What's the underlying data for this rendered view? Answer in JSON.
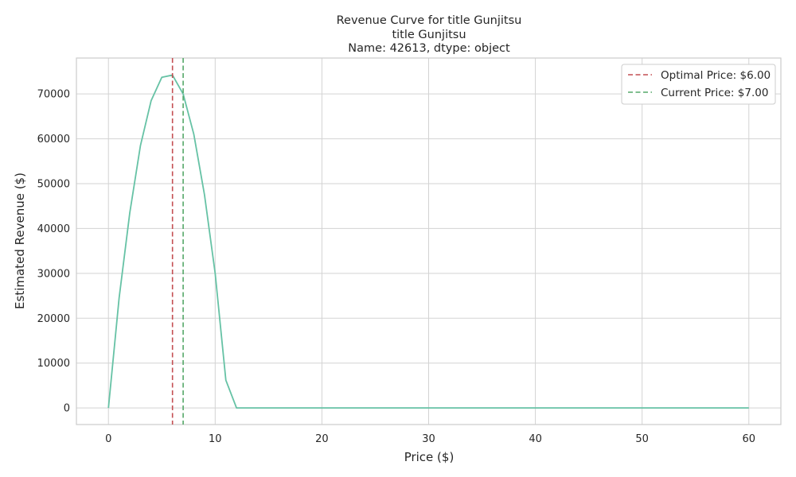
{
  "chart_data": {
    "type": "line",
    "title": "Revenue Curve for title    Gunjitsu",
    "subtitle_lines": [
      "title    Gunjitsu",
      "Name: 42613, dtype: object"
    ],
    "xlabel": "Price ($)",
    "ylabel": "Estimated Revenue ($)",
    "xlim": [
      -3,
      63
    ],
    "ylim": [
      -3700,
      78000
    ],
    "xticks": [
      0,
      10,
      20,
      30,
      40,
      50,
      60
    ],
    "yticks": [
      0,
      10000,
      20000,
      30000,
      40000,
      50000,
      60000,
      70000
    ],
    "grid": true,
    "legend_position": "top-right",
    "series": [
      {
        "color": "#66c2a5",
        "x": [
          0,
          1,
          2,
          3,
          4,
          5,
          6,
          7,
          8,
          9,
          10,
          11,
          12,
          13,
          14,
          15,
          16,
          17,
          18,
          19,
          20,
          21,
          22,
          23,
          24,
          25,
          26,
          27,
          28,
          29,
          30,
          31,
          32,
          33,
          34,
          35,
          36,
          37,
          38,
          39,
          40,
          41,
          42,
          43,
          44,
          45,
          46,
          47,
          48,
          49,
          50,
          51,
          52,
          53,
          54,
          55,
          56,
          57,
          58,
          59,
          60
        ],
        "values": [
          0,
          24500,
          43500,
          58500,
          68500,
          73700,
          74200,
          70000,
          61000,
          47500,
          30000,
          6200,
          0,
          0,
          0,
          0,
          0,
          0,
          0,
          0,
          0,
          0,
          0,
          0,
          0,
          0,
          0,
          0,
          0,
          0,
          0,
          0,
          0,
          0,
          0,
          0,
          0,
          0,
          0,
          0,
          0,
          0,
          0,
          0,
          0,
          0,
          0,
          0,
          0,
          0,
          0,
          0,
          0,
          0,
          0,
          0,
          0,
          0,
          0,
          0,
          0
        ]
      }
    ],
    "vlines": [
      {
        "name": "Optimal Price: $6.00",
        "x": 6,
        "color": "#c44e52",
        "style": "dashed"
      },
      {
        "name": "Current Price: $7.00",
        "x": 7,
        "color": "#55a868",
        "style": "dashed"
      }
    ]
  }
}
